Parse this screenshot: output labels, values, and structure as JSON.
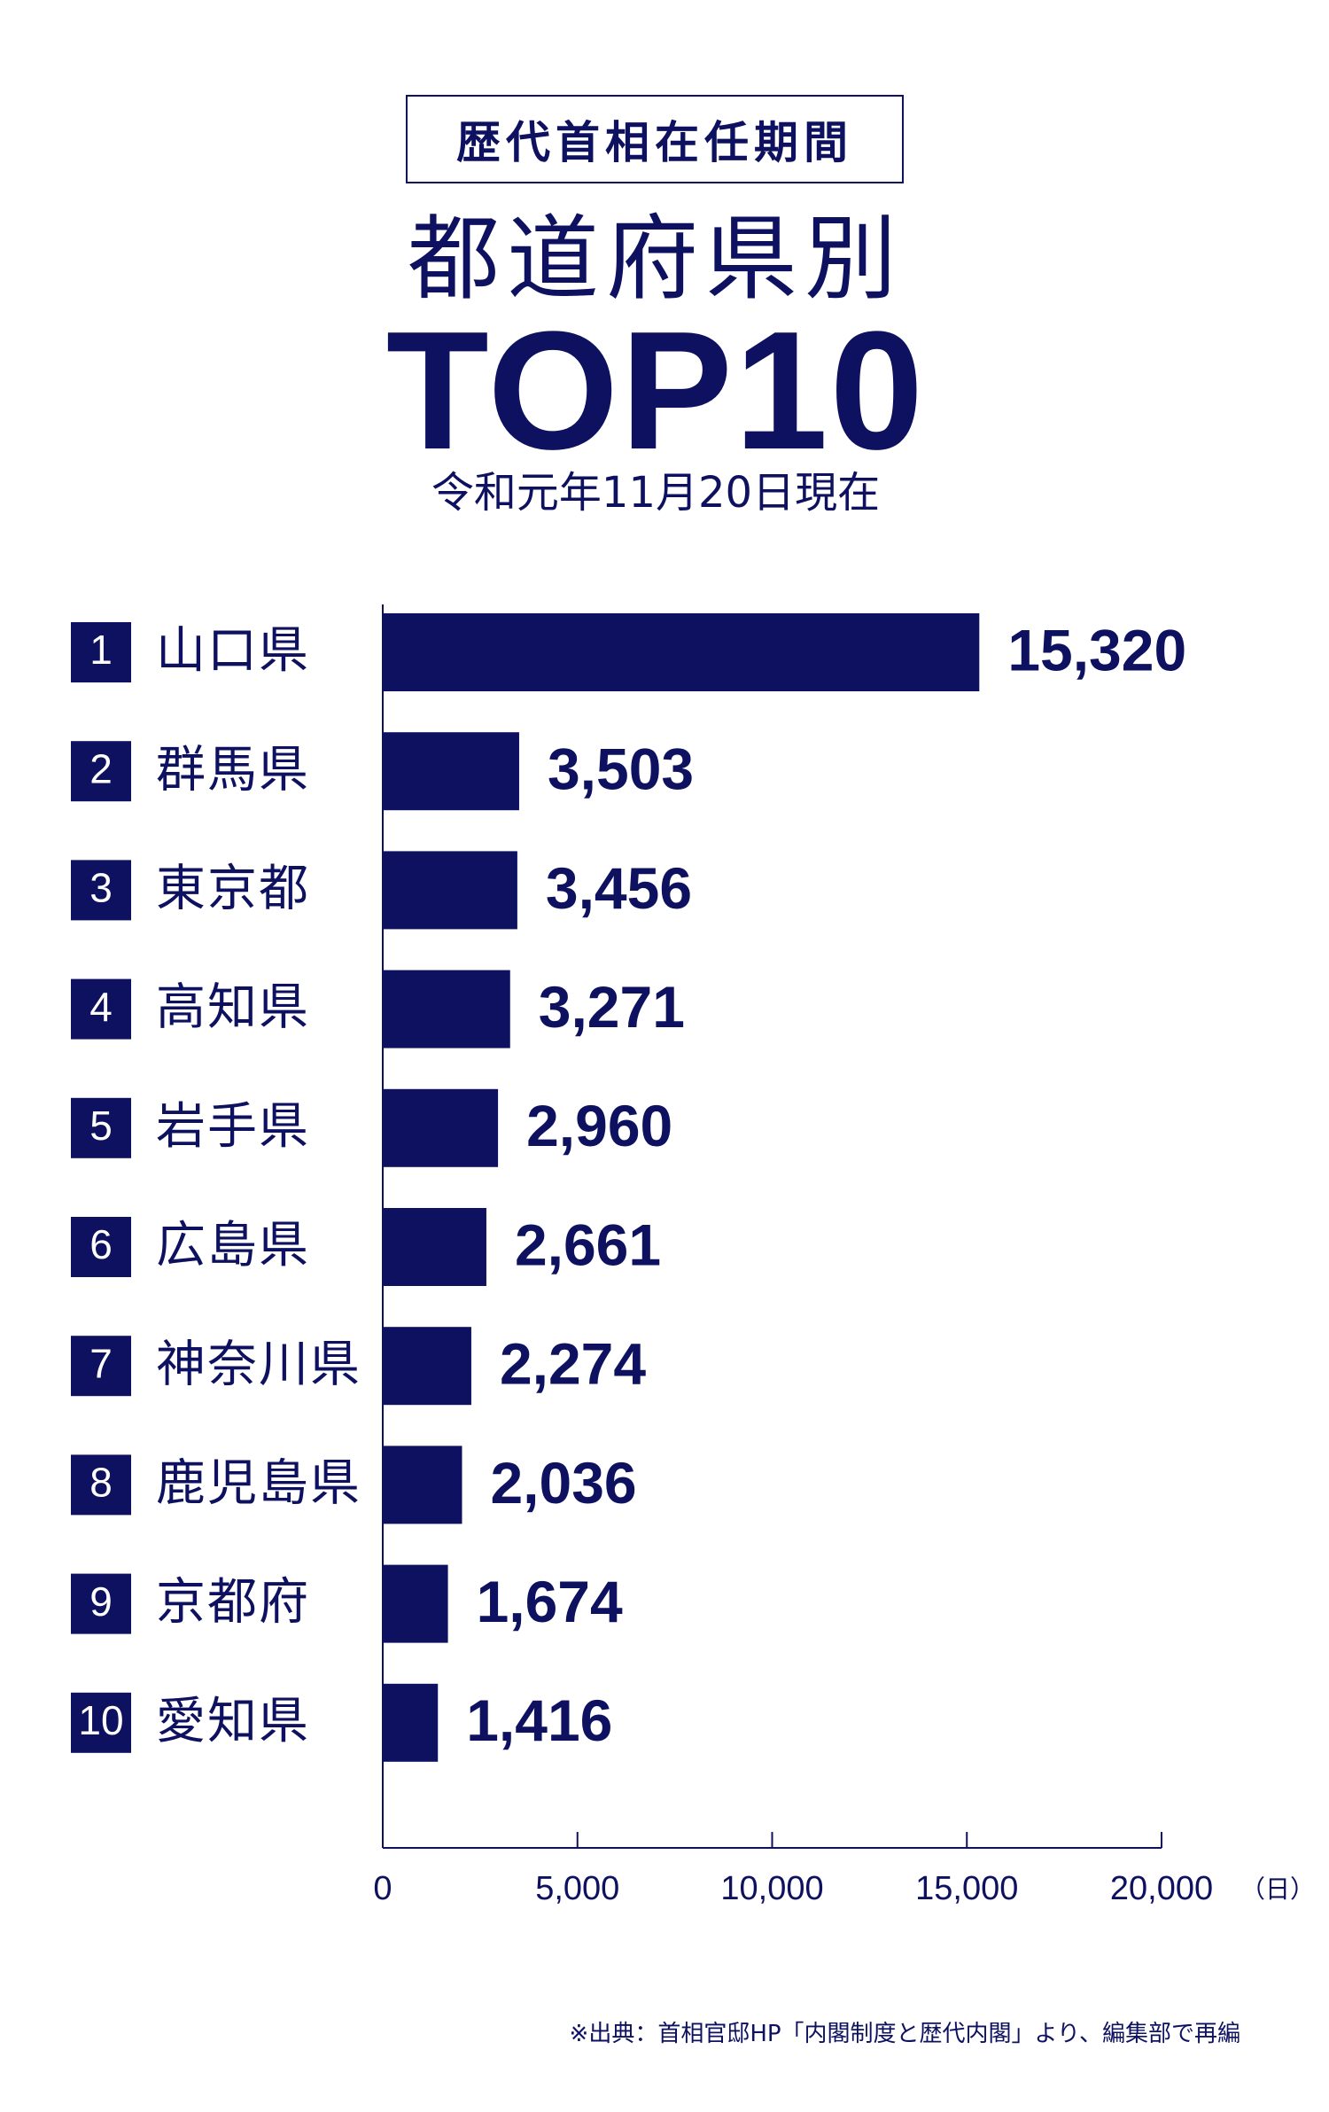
{
  "header": {
    "boxed_title": "歴代首相在任期間",
    "subtitle": "都道府県別",
    "headline": "TOP10",
    "date": "令和元年11月20日現在"
  },
  "footer": {
    "source": "※出典：首相官邸HP「内閣制度と歴代内閣」より、編集部で再編"
  },
  "chart_data": {
    "type": "bar",
    "orientation": "horizontal",
    "title": "",
    "xlabel": "（日）",
    "ylabel": "",
    "xlim": [
      0,
      20000
    ],
    "xticks": [
      "0",
      "5,000",
      "10,000",
      "15,000",
      "20,000"
    ],
    "xtick_values": [
      0,
      5000,
      10000,
      15000,
      20000
    ],
    "ranks": [
      "1",
      "2",
      "3",
      "4",
      "5",
      "6",
      "7",
      "8",
      "9",
      "10"
    ],
    "categories": [
      "山口県",
      "群馬県",
      "東京都",
      "高知県",
      "岩手県",
      "広島県",
      "神奈川県",
      "鹿児島県",
      "京都府",
      "愛知県"
    ],
    "values": [
      15320,
      3503,
      3456,
      3271,
      2960,
      2661,
      2274,
      2036,
      1674,
      1416
    ],
    "value_labels": [
      "15,320",
      "3,503",
      "3,456",
      "3,271",
      "2,960",
      "2,661",
      "2,274",
      "2,036",
      "1,674",
      "1,416"
    ],
    "bar_color": "#0d1160",
    "grid": false,
    "legend": "none"
  }
}
